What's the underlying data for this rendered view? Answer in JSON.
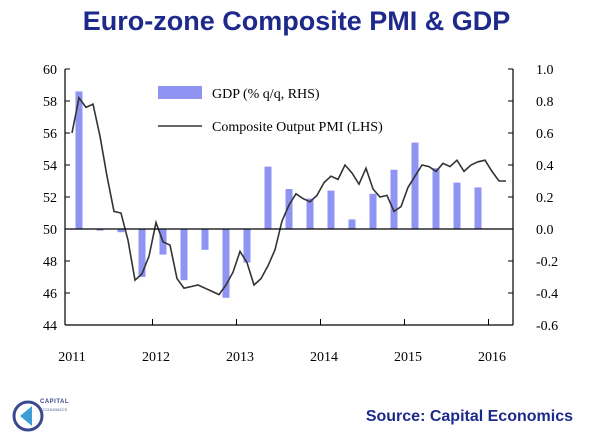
{
  "page": {
    "title": "Euro-zone Composite PMI & GDP",
    "source": "Source: Capital Economics",
    "logo": {
      "name": "CAPITAL",
      "sub": "ECONOMICS"
    }
  },
  "colors": {
    "title": "#1d2a8c",
    "bars": "#8f94f2",
    "line": "#333333",
    "source": "#1d2a8c"
  },
  "chart_data": {
    "type": "bar",
    "title": "Euro-zone Composite PMI & GDP",
    "legend_position": "top-center",
    "grid": false,
    "x_tick_labels": [
      "2011",
      "2012",
      "2013",
      "2014",
      "2015",
      "2016"
    ],
    "left_axis": {
      "ylim": [
        44,
        60
      ],
      "ticks": [
        "44",
        "46",
        "48",
        "50",
        "52",
        "54",
        "56",
        "58",
        "60"
      ]
    },
    "right_axis": {
      "ylim": [
        -0.6,
        1.0
      ],
      "ticks": [
        "-0.6",
        "-0.4",
        "-0.2",
        "0.0",
        "0.2",
        "0.4",
        "0.6",
        "0.8",
        "1.0"
      ]
    },
    "series": [
      {
        "name": "GDP (% q/q, RHS)",
        "type": "bar",
        "axis": "right",
        "x": [
          "2011-Q1",
          "2011-Q2",
          "2011-Q3",
          "2011-Q4",
          "2012-Q1",
          "2012-Q2",
          "2012-Q3",
          "2012-Q4",
          "2013-Q1",
          "2013-Q2",
          "2013-Q3",
          "2013-Q4",
          "2014-Q1",
          "2014-Q2",
          "2014-Q3",
          "2014-Q4",
          "2015-Q1",
          "2015-Q2",
          "2015-Q3",
          "2015-Q4"
        ],
        "values": [
          0.86,
          -0.01,
          -0.02,
          -0.3,
          -0.16,
          -0.32,
          -0.13,
          -0.43,
          -0.21,
          0.39,
          0.25,
          0.19,
          0.24,
          0.06,
          0.22,
          0.37,
          0.54,
          0.38,
          0.29,
          0.26
        ]
      },
      {
        "name": "Composite Output PMI (LHS)",
        "type": "line",
        "axis": "left",
        "x": [
          "2011-01",
          "2011-02",
          "2011-03",
          "2011-04",
          "2011-05",
          "2011-06",
          "2011-07",
          "2011-08",
          "2011-09",
          "2011-10",
          "2011-11",
          "2011-12",
          "2012-01",
          "2012-02",
          "2012-03",
          "2012-04",
          "2012-05",
          "2012-06",
          "2012-07",
          "2012-08",
          "2012-09",
          "2012-10",
          "2012-11",
          "2012-12",
          "2013-01",
          "2013-02",
          "2013-03",
          "2013-04",
          "2013-05",
          "2013-06",
          "2013-07",
          "2013-08",
          "2013-09",
          "2013-10",
          "2013-11",
          "2013-12",
          "2014-01",
          "2014-02",
          "2014-03",
          "2014-04",
          "2014-05",
          "2014-06",
          "2014-07",
          "2014-08",
          "2014-09",
          "2014-10",
          "2014-11",
          "2014-12",
          "2015-01",
          "2015-02",
          "2015-03",
          "2015-04",
          "2015-05",
          "2015-06",
          "2015-07",
          "2015-08",
          "2015-09",
          "2015-10",
          "2015-11",
          "2015-12",
          "2016-01",
          "2016-02",
          "2016-03"
        ],
        "values": [
          56.0,
          58.2,
          57.6,
          57.8,
          55.8,
          53.3,
          51.1,
          51.0,
          49.3,
          46.8,
          47.2,
          48.3,
          50.4,
          49.2,
          49.0,
          46.9,
          46.3,
          46.4,
          46.5,
          46.3,
          46.1,
          45.9,
          46.5,
          47.3,
          48.6,
          47.9,
          46.5,
          46.9,
          47.7,
          48.7,
          50.5,
          51.5,
          52.2,
          51.9,
          51.7,
          52.1,
          52.9,
          53.3,
          53.1,
          54.0,
          53.5,
          52.8,
          53.8,
          52.5,
          52.0,
          52.1,
          51.1,
          51.4,
          52.6,
          53.3,
          54.0,
          53.9,
          53.6,
          54.1,
          53.9,
          54.3,
          53.6,
          54.0,
          54.2,
          54.3,
          53.6,
          53.0,
          53.0
        ]
      }
    ]
  }
}
